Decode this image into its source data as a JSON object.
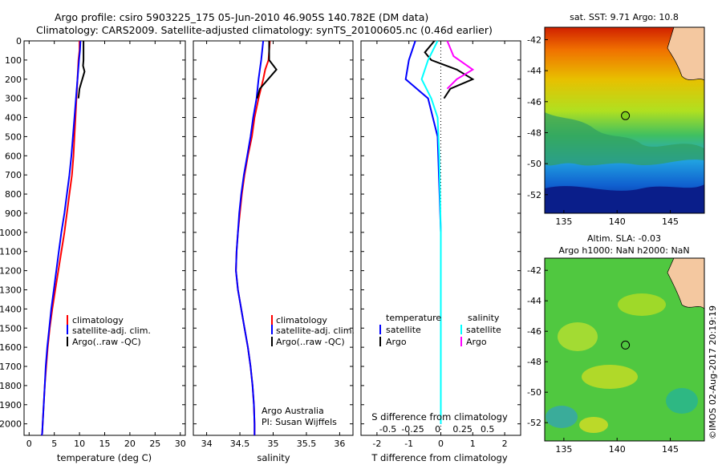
{
  "title": {
    "line1": "Argo profile: csiro 5903225_175 05-Jun-2010 46.905S 140.782E (DM data)",
    "line2": "Climatology: CARS2009. Satellite-adjusted climatology: synTS_20100605.nc (0.46d earlier)"
  },
  "chart_data": [
    {
      "type": "line",
      "xlabel": "temperature (deg C)",
      "xlim": [
        -1,
        31
      ],
      "xticks": [
        0,
        5,
        10,
        15,
        20,
        25,
        30
      ],
      "ylim": [
        0,
        2060
      ],
      "yticks": [
        0,
        100,
        200,
        300,
        400,
        500,
        600,
        700,
        800,
        900,
        1000,
        1100,
        1200,
        1300,
        1400,
        1500,
        1600,
        1700,
        1800,
        1900,
        2000
      ],
      "legend": {
        "placement": "lower-center",
        "entries": [
          "climatology",
          "satellite-adj. clim.",
          "Argo(..raw -QC)"
        ]
      },
      "series": [
        {
          "name": "climatology",
          "color": "#ff0000",
          "x": [
            10.0,
            10.0,
            9.8,
            9.6,
            9.4,
            9.2,
            9.0,
            8.8,
            8.5,
            8.0,
            7.5,
            7.0,
            6.4,
            5.8,
            5.2,
            4.6,
            4.1,
            3.7,
            3.4,
            3.1,
            2.9,
            2.7,
            2.6,
            2.5
          ],
          "y": [
            0,
            50,
            100,
            200,
            300,
            400,
            500,
            600,
            700,
            800,
            900,
            1000,
            1100,
            1200,
            1300,
            1400,
            1500,
            1600,
            1700,
            1800,
            1900,
            2000,
            2050,
            2060
          ]
        },
        {
          "name": "satellite-adj. clim.",
          "color": "#0000ff",
          "x": [
            10.2,
            10.1,
            9.9,
            9.6,
            9.3,
            9.0,
            8.7,
            8.4,
            8.0,
            7.5,
            7.0,
            6.4,
            5.9,
            5.4,
            4.9,
            4.4,
            4.0,
            3.6,
            3.3,
            3.1,
            2.9,
            2.7,
            2.6,
            2.5
          ],
          "y": [
            0,
            50,
            100,
            200,
            300,
            400,
            500,
            600,
            700,
            800,
            900,
            1000,
            1100,
            1200,
            1300,
            1400,
            1500,
            1600,
            1700,
            1800,
            1900,
            2000,
            2050,
            2060
          ]
        },
        {
          "name": "Argo(..raw -QC)",
          "color": "#000000",
          "x": [
            10.8,
            10.8,
            10.7,
            11.0,
            10.0,
            9.8
          ],
          "y": [
            0,
            100,
            130,
            160,
            250,
            300
          ]
        }
      ]
    },
    {
      "type": "line",
      "xlabel": "salinity",
      "xlim": [
        33.8,
        36.2
      ],
      "xticks": [
        34,
        34.5,
        35,
        35.5,
        36
      ],
      "ylim": [
        0,
        2060
      ],
      "legend": {
        "placement": "lower-center",
        "entries": [
          "climatology",
          "satellite-adj. clim.",
          "Argo(..raw -QC)"
        ]
      },
      "annotation": [
        "Argo Australia",
        "PI: Susan Wijffels"
      ],
      "series": [
        {
          "name": "climatology",
          "color": "#ff0000",
          "x": [
            34.95,
            34.93,
            34.88,
            34.85,
            34.78,
            34.72,
            34.68,
            34.62,
            34.57,
            34.53,
            34.5,
            34.47,
            34.45,
            34.44,
            34.47,
            34.52,
            34.57,
            34.62,
            34.66,
            34.69,
            34.71,
            34.72,
            34.72
          ],
          "y": [
            0,
            100,
            150,
            200,
            300,
            400,
            500,
            600,
            700,
            800,
            900,
            1000,
            1100,
            1200,
            1300,
            1400,
            1500,
            1600,
            1700,
            1800,
            1900,
            2000,
            2060
          ]
        },
        {
          "name": "satellite-adj. clim.",
          "color": "#0000ff",
          "x": [
            34.85,
            34.82,
            34.8,
            34.78,
            34.75,
            34.7,
            34.66,
            34.61,
            34.56,
            34.52,
            34.49,
            34.47,
            34.45,
            34.44,
            34.47,
            34.52,
            34.57,
            34.62,
            34.66,
            34.69,
            34.71,
            34.72,
            34.72
          ],
          "y": [
            0,
            100,
            150,
            200,
            300,
            400,
            500,
            600,
            700,
            800,
            900,
            1000,
            1100,
            1200,
            1300,
            1400,
            1500,
            1600,
            1700,
            1800,
            1900,
            2000,
            2060
          ]
        },
        {
          "name": "Argo(..raw -QC)",
          "color": "#000000",
          "x": [
            34.94,
            34.94,
            35.05,
            34.8,
            34.76
          ],
          "y": [
            0,
            100,
            150,
            250,
            300
          ]
        }
      ]
    },
    {
      "type": "line",
      "xlabel": "T difference from climatology",
      "xlabel_top": "S difference from climatology",
      "xlim": [
        -2.5,
        2.5
      ],
      "xticks": [
        -2,
        -1,
        0,
        1,
        2
      ],
      "xticks_top": [
        "-0.5",
        "-0.25",
        "0",
        "0.25",
        "0.5"
      ],
      "ylim": [
        0,
        2060
      ],
      "legend": {
        "placement": "lower-center",
        "col1": [
          "temperature",
          "satellite",
          "Argo"
        ],
        "col2": [
          "salinity",
          "satellite",
          "Argo"
        ]
      },
      "series": [
        {
          "name": "temperature satellite",
          "color": "#0000ff",
          "x": [
            -0.8,
            -1.0,
            -1.1,
            -0.4,
            -0.1,
            0.0,
            0.0,
            0.0
          ],
          "y": [
            0,
            100,
            200,
            300,
            500,
            1000,
            1500,
            2000
          ]
        },
        {
          "name": "temperature Argo",
          "color": "#000000",
          "x": [
            -0.2,
            -0.5,
            -0.3,
            0.5,
            1.0,
            0.3,
            0.1
          ],
          "y": [
            0,
            60,
            100,
            150,
            200,
            250,
            300
          ]
        },
        {
          "name": "salinity satellite",
          "color": "#00ffff",
          "x": [
            -0.1,
            -0.4,
            -0.6,
            -0.3,
            -0.1,
            -0.05,
            0.0,
            0.0
          ],
          "y": [
            0,
            100,
            200,
            300,
            400,
            600,
            1000,
            2000
          ]
        },
        {
          "name": "salinity Argo",
          "color": "#ff00ff",
          "x": [
            0.2,
            0.4,
            1.0,
            0.5,
            0.2
          ],
          "y": [
            0,
            80,
            150,
            200,
            250
          ]
        }
      ]
    },
    {
      "type": "heatmap",
      "title": "sat. SST: 9.71  Argo: 10.8",
      "xticks": [
        135,
        140,
        145
      ],
      "yticks": [
        -42,
        -44,
        -46,
        -48,
        -50,
        -52
      ],
      "marker": {
        "lon": 140.782,
        "lat": -46.905
      }
    },
    {
      "type": "heatmap",
      "title_lines": [
        "Altim. SLA: -0.03",
        "Argo h1000: NaN h2000: NaN"
      ],
      "xticks": [
        135,
        140,
        145
      ],
      "yticks": [
        -42,
        -44,
        -46,
        -48,
        -50,
        -52
      ],
      "marker": {
        "lon": 140.782,
        "lat": -46.905
      }
    }
  ],
  "footer_stamp": "©IMOS 02-Aug-2017 20:19:19"
}
